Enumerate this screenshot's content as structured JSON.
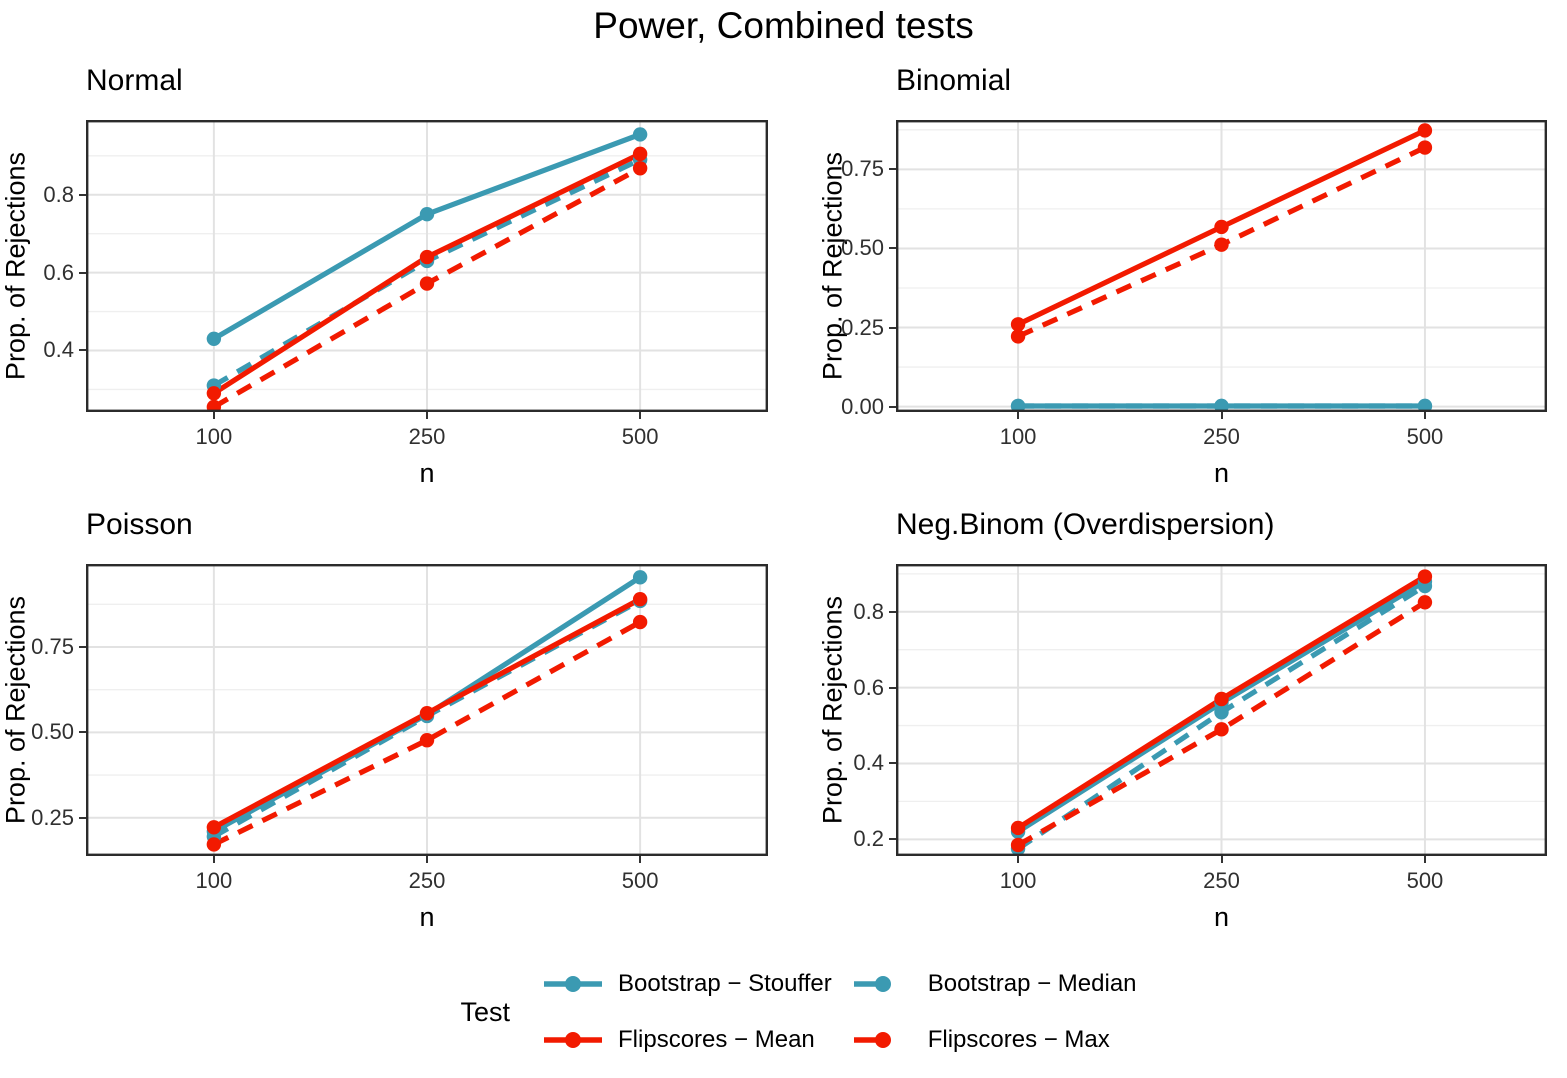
{
  "page_title": "Power, Combined tests",
  "axes": {
    "x_label": "n",
    "y_label": "Prop. of Rejections",
    "x_tick_labels": [
      "100",
      "250",
      "500"
    ]
  },
  "colors": {
    "teal": "#3B9AB2",
    "red": "#F21A00",
    "panel_border": "#2b2b2b",
    "grid_major": "#E2E2E2",
    "grid_minor": "#EFEFEF",
    "tick_text": "#303030"
  },
  "legend": {
    "title": "Test",
    "entries": [
      {
        "key": "bootstrap-stouffer",
        "name": "Bootstrap − Stouffer",
        "color": "#3B9AB2",
        "style": "solid"
      },
      {
        "key": "bootstrap-median",
        "name": "Bootstrap − Median",
        "color": "#3B9AB2",
        "style": "dashed"
      },
      {
        "key": "flipscores-mean",
        "name": "Flipscores − Mean",
        "color": "#F21A00",
        "style": "solid"
      },
      {
        "key": "flipscores-max",
        "name": "Flipscores − Max",
        "color": "#F21A00",
        "style": "dashed"
      }
    ]
  },
  "chart_data": [
    {
      "type": "line",
      "title": "Normal",
      "xlabel": "n",
      "ylabel": "Prop. of Rejections",
      "x": [
        100,
        250,
        500
      ],
      "ylim": [
        0.242,
        0.992
      ],
      "yticks": [
        {
          "v": 0.4,
          "label": "0.4"
        },
        {
          "v": 0.6,
          "label": "0.6"
        },
        {
          "v": 0.8,
          "label": "0.8"
        }
      ],
      "yminor": [
        0.3,
        0.5,
        0.7,
        0.9
      ],
      "series": [
        {
          "key": "bootstrap-stouffer",
          "name": "Bootstrap − Stouffer",
          "color": "#3B9AB2",
          "dash": "solid",
          "values": [
            0.43,
            0.75,
            0.955
          ]
        },
        {
          "key": "bootstrap-median",
          "name": "Bootstrap − Median",
          "color": "#3B9AB2",
          "dash": "dashed",
          "values": [
            0.31,
            0.63,
            0.89
          ]
        },
        {
          "key": "flipscores-mean",
          "name": "Flipscores − Mean",
          "color": "#F21A00",
          "dash": "solid",
          "values": [
            0.29,
            0.64,
            0.905
          ]
        },
        {
          "key": "flipscores-max",
          "name": "Flipscores − Max",
          "color": "#F21A00",
          "dash": "dashed",
          "values": [
            0.255,
            0.572,
            0.868
          ]
        }
      ]
    },
    {
      "type": "line",
      "title": "Binomial",
      "xlabel": "n",
      "ylabel": "Prop. of Rejections",
      "x": [
        100,
        250,
        500
      ],
      "ylim": [
        -0.017,
        0.906
      ],
      "yticks": [
        {
          "v": 0.0,
          "label": "0.00"
        },
        {
          "v": 0.25,
          "label": "0.25"
        },
        {
          "v": 0.5,
          "label": "0.50"
        },
        {
          "v": 0.75,
          "label": "0.75"
        }
      ],
      "yminor": [
        0.125,
        0.375,
        0.625,
        0.875
      ],
      "series": [
        {
          "key": "bootstrap-stouffer",
          "name": "Bootstrap − Stouffer",
          "color": "#3B9AB2",
          "dash": "solid",
          "values": [
            0.002,
            0.002,
            0.002
          ]
        },
        {
          "key": "bootstrap-median",
          "name": "Bootstrap − Median",
          "color": "#3B9AB2",
          "dash": "dashed",
          "values": [
            0.002,
            0.002,
            0.002
          ]
        },
        {
          "key": "flipscores-mean",
          "name": "Flipscores − Mean",
          "color": "#F21A00",
          "dash": "solid",
          "values": [
            0.26,
            0.568,
            0.873
          ]
        },
        {
          "key": "flipscores-max",
          "name": "Flipscores − Max",
          "color": "#F21A00",
          "dash": "dashed",
          "values": [
            0.222,
            0.512,
            0.819
          ]
        }
      ]
    },
    {
      "type": "line",
      "title": "Poisson",
      "xlabel": "n",
      "ylabel": "Prop. of Rejections",
      "x": [
        100,
        250,
        500
      ],
      "ylim": [
        0.138,
        0.993
      ],
      "yticks": [
        {
          "v": 0.25,
          "label": "0.25"
        },
        {
          "v": 0.5,
          "label": "0.50"
        },
        {
          "v": 0.75,
          "label": "0.75"
        }
      ],
      "yminor": [
        0.375,
        0.625,
        0.875
      ],
      "series": [
        {
          "key": "bootstrap-stouffer",
          "name": "Bootstrap − Stouffer",
          "color": "#3B9AB2",
          "dash": "solid",
          "values": [
            0.21,
            0.552,
            0.954
          ]
        },
        {
          "key": "bootstrap-median",
          "name": "Bootstrap − Median",
          "color": "#3B9AB2",
          "dash": "dashed",
          "values": [
            0.195,
            0.548,
            0.885
          ]
        },
        {
          "key": "flipscores-mean",
          "name": "Flipscores − Mean",
          "color": "#F21A00",
          "dash": "solid",
          "values": [
            0.222,
            0.556,
            0.89
          ]
        },
        {
          "key": "flipscores-max",
          "name": "Flipscores − Max",
          "color": "#F21A00",
          "dash": "dashed",
          "values": [
            0.172,
            0.477,
            0.823
          ]
        }
      ]
    },
    {
      "type": "line",
      "title": "Neg.Binom (Overdispersion)",
      "xlabel": "n",
      "ylabel": "Prop. of Rejections",
      "x": [
        100,
        250,
        500
      ],
      "ylim": [
        0.156,
        0.926
      ],
      "yticks": [
        {
          "v": 0.2,
          "label": "0.2"
        },
        {
          "v": 0.4,
          "label": "0.4"
        },
        {
          "v": 0.6,
          "label": "0.6"
        },
        {
          "v": 0.8,
          "label": "0.8"
        }
      ],
      "yminor": [
        0.3,
        0.5,
        0.7,
        0.9
      ],
      "series": [
        {
          "key": "bootstrap-stouffer",
          "name": "Bootstrap − Stouffer",
          "color": "#3B9AB2",
          "dash": "solid",
          "values": [
            0.22,
            0.56,
            0.88
          ]
        },
        {
          "key": "bootstrap-median",
          "name": "Bootstrap − Median",
          "color": "#3B9AB2",
          "dash": "dashed",
          "values": [
            0.175,
            0.535,
            0.868
          ]
        },
        {
          "key": "flipscores-mean",
          "name": "Flipscores − Mean",
          "color": "#F21A00",
          "dash": "solid",
          "values": [
            0.23,
            0.57,
            0.893
          ]
        },
        {
          "key": "flipscores-max",
          "name": "Flipscores − Max",
          "color": "#F21A00",
          "dash": "dashed",
          "values": [
            0.185,
            0.49,
            0.825
          ]
        }
      ]
    }
  ]
}
